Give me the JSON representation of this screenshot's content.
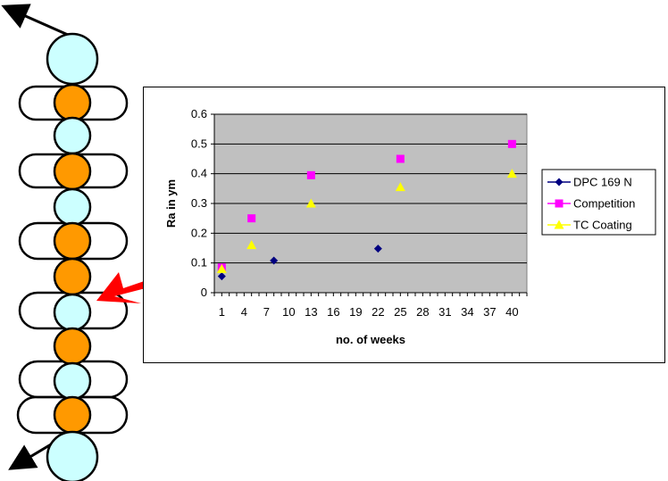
{
  "illustration": {
    "colors": {
      "light_bead": "#CCFFFF",
      "dark_bead": "#FF9900",
      "pointer_arrow": "#FF0000"
    },
    "bead_sequence": [
      "light",
      "dark",
      "light",
      "dark",
      "light",
      "dark",
      "dark",
      "light",
      "dark",
      "light",
      "dark",
      "light"
    ]
  },
  "chart_data": {
    "type": "scatter",
    "title": "",
    "xlabel": "no. of weeks",
    "ylabel": "Ra in ym",
    "xlim": [
      0,
      42
    ],
    "ylim": [
      0,
      0.6
    ],
    "x_ticks": [
      1,
      4,
      7,
      10,
      13,
      16,
      19,
      22,
      25,
      28,
      31,
      34,
      37,
      40
    ],
    "y_ticks": [
      0,
      0.1,
      0.2,
      0.3,
      0.4,
      0.5,
      0.6
    ],
    "plot_background": "#C0C0C0",
    "grid": "horizontal",
    "legend_position": "right",
    "series": [
      {
        "name": "DPC 169 N",
        "marker": "diamond",
        "color": "#000080",
        "x": [
          1,
          8,
          22
        ],
        "y": [
          0.055,
          0.108,
          0.148
        ]
      },
      {
        "name": "Competition",
        "marker": "square",
        "color": "#FF00FF",
        "x": [
          1,
          5,
          13,
          25,
          40
        ],
        "y": [
          0.085,
          0.25,
          0.395,
          0.45,
          0.5
        ]
      },
      {
        "name": "TC Coating",
        "marker": "triangle",
        "color": "#FFFF00",
        "x": [
          1,
          5,
          13,
          25,
          40
        ],
        "y": [
          0.08,
          0.16,
          0.3,
          0.355,
          0.4
        ]
      }
    ]
  }
}
